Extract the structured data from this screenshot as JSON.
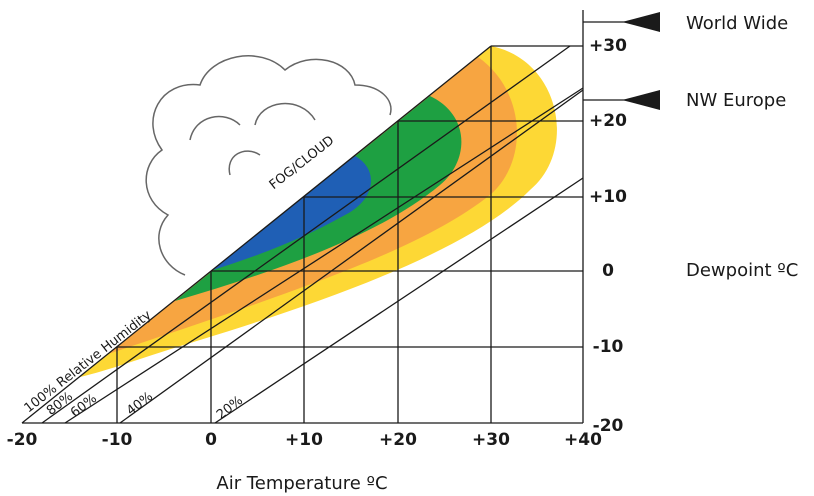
{
  "x_axis": {
    "title": "Air Temperature ºC",
    "ticks": [
      "-20",
      "-10",
      "0",
      "+10",
      "+20",
      "+30",
      "+40"
    ]
  },
  "y_axis": {
    "title": "Dewpoint ºC",
    "ticks": [
      "+30",
      "+20",
      "+10",
      "0",
      "-10",
      "-20"
    ]
  },
  "markers": [
    "World Wide",
    "NW Europe"
  ],
  "region_label": "FOG/CLOUD",
  "humidity_lines": [
    "100% Relative Humidity",
    "80%",
    "60%",
    "40%",
    "20%"
  ]
}
